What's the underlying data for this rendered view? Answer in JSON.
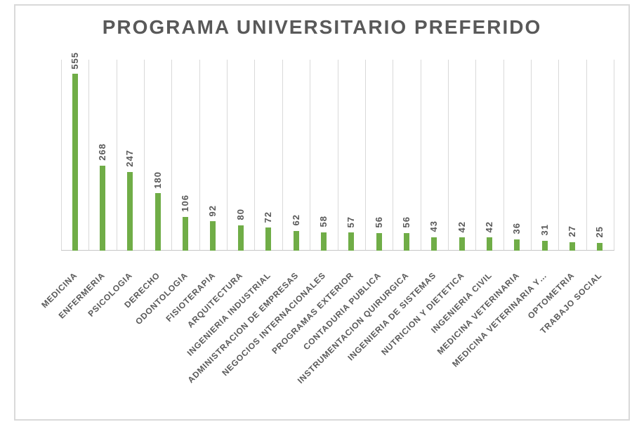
{
  "title": "PROGRAMA UNIVERSITARIO PREFERIDO",
  "colors": {
    "bar": "#70AD47",
    "text": "#595959",
    "gridline": "#D9D9D9",
    "axis_line": "#C6C6C6",
    "frame_border": "#D9D9D9",
    "background": "#FFFFFF"
  },
  "chart_data": {
    "type": "bar",
    "title": "PROGRAMA UNIVERSITARIO PREFERIDO",
    "categories": [
      "MEDICINA",
      "ENFERMERIA",
      "PSICOLOGIA",
      "DERECHO",
      "ODONTOLOGIA",
      "FISIOTERAPIA",
      "ARQUITECTURA",
      "INGENIERIA INDUSTRIAL",
      "ADMINISTRACION DE EMPRESAS",
      "NEGOCIOS INTERNACIONALES",
      "PROGRAMAS EXTERIOR",
      "CONTADURIA PUBLICA",
      "INSTRUMENTACION QUIRURGICA",
      "INGENIERIA DE SISTEMAS",
      "NUTRICION Y DIETETICA",
      "INGENIERIA CIVIL",
      "MEDICINA VETERINARIA",
      "MEDICINA VETERINARIA Y…",
      "OPTOMETRIA",
      "TRABAJO SOCIAL"
    ],
    "values": [
      555,
      268,
      247,
      180,
      106,
      92,
      80,
      72,
      62,
      58,
      57,
      56,
      56,
      43,
      42,
      42,
      36,
      31,
      27,
      25
    ],
    "xlabel": "",
    "ylabel": "",
    "ylim": [
      0,
      600
    ],
    "grid": "vertical-category-gridlines",
    "legend": "none",
    "value_labels": "rotated-90-above-bars",
    "category_labels": "rotated-45"
  }
}
